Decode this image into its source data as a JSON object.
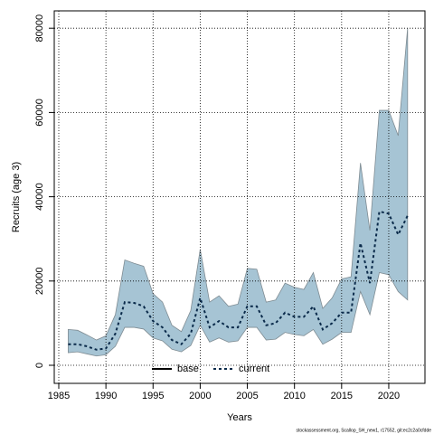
{
  "chart_data": {
    "type": "line",
    "x_label": "Years",
    "y_label": "Recruits (age 3)",
    "footer": "stockassessment.org, Scallop_SH_new1, r17552, git:ec2c2a0cfdde",
    "x": [
      1986,
      1987,
      1988,
      1989,
      1990,
      1991,
      1992,
      1993,
      1994,
      1995,
      1996,
      1997,
      1998,
      1999,
      2000,
      2001,
      2002,
      2003,
      2004,
      2005,
      2006,
      2007,
      2008,
      2009,
      2010,
      2011,
      2012,
      2013,
      2014,
      2015,
      2016,
      2017,
      2018,
      2019,
      2020,
      2021,
      2022
    ],
    "series": [
      {
        "color": "#0a2a4a",
        "dash": true,
        "values": [
          5000,
          5000,
          4500,
          3700,
          4000,
          7500,
          15000,
          14800,
          14000,
          10500,
          9000,
          6000,
          5000,
          7500,
          16000,
          9000,
          10500,
          9000,
          9000,
          14000,
          14000,
          9500,
          10000,
          12500,
          11500,
          11500,
          14000,
          8500,
          10000,
          12500,
          12500,
          29000,
          19500,
          36500,
          36000,
          31000,
          35500
        ]
      }
    ],
    "band": {
      "color": "#a6c4d4",
      "edge": "#7f8c93",
      "lower": [
        3000,
        3200,
        2700,
        2200,
        2500,
        4500,
        9000,
        9000,
        8600,
        6500,
        5800,
        3800,
        3200,
        4700,
        9500,
        5500,
        6500,
        5500,
        5800,
        9000,
        9000,
        6000,
        6200,
        7800,
        7300,
        7000,
        8500,
        5000,
        6200,
        7800,
        7800,
        17500,
        12000,
        22000,
        21500,
        17500,
        15500
      ],
      "upper": [
        8500,
        8300,
        7200,
        6000,
        7000,
        12000,
        25000,
        24200,
        23500,
        17000,
        15000,
        9500,
        8000,
        13000,
        27500,
        15000,
        16500,
        14000,
        14500,
        23000,
        22800,
        15000,
        15500,
        19500,
        18500,
        18000,
        22000,
        13500,
        16000,
        20500,
        21000,
        48000,
        32000,
        60500,
        60500,
        54500,
        80000
      ]
    },
    "legend": [
      {
        "name": "base",
        "color": "#000000",
        "dash": false
      },
      {
        "name": "current",
        "color": "#0a2a4a",
        "dash": true
      }
    ],
    "xlim": [
      1984.52,
      2023.84
    ],
    "ylim": [
      -4290,
      84120
    ],
    "xticks": [
      1985,
      1990,
      1995,
      2000,
      2005,
      2010,
      2015,
      2020
    ],
    "yticks": [
      0,
      20000,
      40000,
      60000,
      80000
    ],
    "grid": true
  }
}
